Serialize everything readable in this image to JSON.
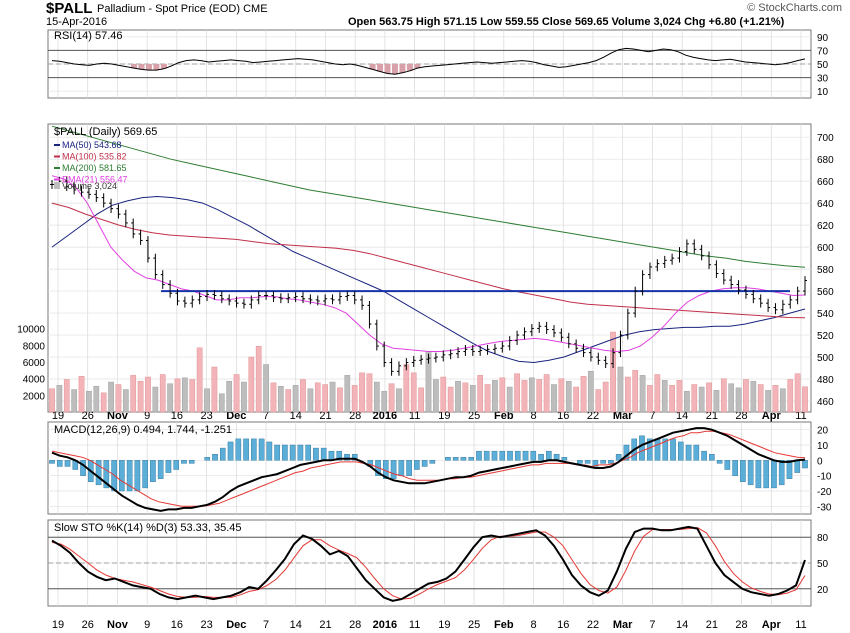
{
  "header": {
    "symbol": "$PALL",
    "description": "Palladium - Spot Price (EOD)",
    "exchange": "CME",
    "date": "15-Apr-2016",
    "quote": "Open 563.75  High 571.15  Low 559.55  Close 569.65  Volume 3,024  Chg +6.80 (+1.21%)",
    "credit": "© StockCharts.com"
  },
  "colors": {
    "ma50": "#1a237e",
    "ma100": "#c0304a",
    "ma200": "#2e7d32",
    "ema21": "#e040e0",
    "support": "#1533a8",
    "vol_up": "#f2b4b8",
    "vol_down": "#bdbdbd",
    "macd_hist": "#5aaed8"
  },
  "chart_data": [
    {
      "type": "line",
      "panel": "rsi",
      "label": "RSI(14) 57.46",
      "y_ticks": [
        90,
        70,
        50,
        30,
        10
      ],
      "ylim": [
        0,
        100
      ],
      "overbought": 70,
      "oversold": 30,
      "values": [
        55,
        54,
        52,
        50,
        49,
        48,
        50,
        51,
        50,
        48,
        46,
        44,
        42,
        41,
        41,
        43,
        47,
        52,
        55,
        56,
        55,
        53,
        54,
        55,
        56,
        55,
        54,
        52,
        53,
        54,
        55,
        56,
        57,
        58,
        57,
        56,
        54,
        52,
        50,
        49,
        50,
        48,
        45,
        42,
        39,
        36,
        35,
        37,
        40,
        44,
        46,
        47,
        48,
        49,
        50,
        51,
        52,
        53,
        52,
        51,
        52,
        53,
        54,
        55,
        54,
        52,
        49,
        47,
        45,
        46,
        48,
        50,
        52,
        55,
        60,
        66,
        71,
        73,
        72,
        70,
        68,
        70,
        72,
        71,
        68,
        63,
        60,
        58,
        56,
        55,
        56,
        57,
        55,
        53,
        52,
        51,
        50,
        49,
        50,
        52,
        55,
        57.46
      ]
    },
    {
      "type": "ohlc",
      "panel": "price",
      "label": "$PALL (Daily) 569.65",
      "x_labels": [
        "19",
        "26",
        "Nov",
        "9",
        "16",
        "23",
        "Dec",
        "7",
        "14",
        "21",
        "28",
        "2016",
        "11",
        "19",
        "25",
        "Feb",
        "8",
        "16",
        "22",
        "Mar",
        "7",
        "14",
        "21",
        "28",
        "Apr",
        "11"
      ],
      "y_ticks": [
        700,
        680,
        660,
        640,
        620,
        600,
        580,
        560,
        540,
        520,
        500,
        480,
        460
      ],
      "ylim": [
        450,
        712
      ],
      "support_level": 560,
      "close": [
        657,
        660,
        655,
        652,
        650,
        648,
        645,
        640,
        635,
        630,
        622,
        612,
        606,
        590,
        575,
        566,
        558,
        551,
        549,
        552,
        555,
        557,
        556,
        553,
        551,
        549,
        548,
        552,
        556,
        556,
        554,
        553,
        554,
        555,
        553,
        552,
        551,
        553,
        552,
        555,
        556,
        552,
        547,
        530,
        510,
        495,
        487,
        492,
        495,
        497,
        498,
        499,
        500,
        502,
        503,
        505,
        507,
        505,
        506,
        507,
        508,
        510,
        515,
        520,
        523,
        526,
        528,
        525,
        522,
        518,
        512,
        508,
        504,
        500,
        497,
        494,
        504,
        520,
        540,
        560,
        575,
        582,
        585,
        588,
        590,
        596,
        603,
        598,
        592,
        584,
        576,
        570,
        566,
        561,
        557,
        553,
        549,
        545,
        543,
        548,
        552,
        560,
        569.65
      ],
      "series": [
        {
          "name": "MA(50) 543.68",
          "values": [
            600,
            610,
            620,
            630,
            638,
            642,
            645,
            646,
            645,
            643,
            640,
            634,
            627,
            620,
            612,
            604,
            596,
            590,
            584,
            578,
            572,
            566,
            560,
            552,
            544,
            536,
            528,
            520,
            512,
            505,
            500,
            496,
            495,
            497,
            500,
            505,
            510,
            515,
            520,
            523,
            525,
            526,
            527,
            527,
            528,
            528,
            530,
            533,
            536,
            540,
            543.68
          ]
        },
        {
          "name": "MA(100) 535.82",
          "values": [
            640,
            636,
            630,
            625,
            620,
            616,
            613,
            611,
            610,
            609,
            608,
            607,
            605,
            603,
            602,
            601,
            600,
            599,
            597,
            594,
            590,
            586,
            582,
            578,
            574,
            570,
            566,
            562,
            559,
            556,
            553,
            550,
            548,
            547,
            546,
            545,
            544,
            543,
            542,
            541,
            540,
            539,
            538,
            537,
            536,
            535.82
          ]
        },
        {
          "name": "MA(200) 581.65",
          "values": [
            710,
            705,
            700,
            695,
            690,
            685,
            680,
            676,
            672,
            668,
            664,
            660,
            656,
            652,
            649,
            646,
            643,
            640,
            637,
            634,
            631,
            628,
            625,
            622,
            619,
            616,
            613,
            610,
            607,
            604,
            601,
            598,
            595,
            592,
            590,
            587,
            585,
            583,
            581.65
          ]
        },
        {
          "name": "EMA(21) 556.47",
          "values": [
            665,
            662,
            655,
            640,
            620,
            600,
            588,
            578,
            572,
            570,
            566,
            562,
            560,
            556,
            552,
            552,
            554,
            554,
            555,
            555,
            553,
            552,
            550,
            548,
            545,
            540,
            530,
            520,
            512,
            508,
            507,
            506,
            505,
            505,
            506,
            508,
            510,
            512,
            514,
            515,
            516,
            517,
            516,
            514,
            512,
            510,
            508,
            506,
            505,
            506,
            510,
            518,
            528,
            540,
            550,
            556,
            560,
            562,
            563,
            563,
            562,
            560,
            558,
            556,
            556.47
          ]
        }
      ]
    },
    {
      "type": "bar",
      "panel": "volume",
      "label": "Volume 3,024",
      "y_ticks": [
        10000,
        8000,
        6000,
        4000,
        2000
      ],
      "ylim": [
        0,
        12000
      ],
      "values": [
        2800,
        3200,
        3900,
        2700,
        4300,
        2500,
        3100,
        2300,
        3600,
        3300,
        2700,
        4400,
        3700,
        4200,
        3000,
        4500,
        3400,
        4000,
        4100,
        3900,
        7700,
        2800,
        5400,
        2200,
        3700,
        4500,
        3600,
        6600,
        7900,
        5700,
        3500,
        3100,
        2700,
        3200,
        3900,
        2800,
        3500,
        3300,
        3600,
        2900,
        4400,
        3200,
        4700,
        4600,
        3600,
        2500,
        3400,
        2800,
        5700,
        4700,
        2900,
        7300,
        3900,
        4200,
        3000,
        3700,
        3500,
        3200,
        4400,
        3300,
        3800,
        4100,
        3000,
        4600,
        3800,
        4100,
        3900,
        4500,
        3300,
        4000,
        3700,
        3000,
        4300,
        4900,
        2700,
        3600,
        9600,
        5400,
        4200,
        5000,
        4400,
        3200,
        4500,
        3800,
        3200,
        3800,
        2500,
        3300,
        3000,
        3500,
        2600,
        4000,
        3400,
        2900,
        3900,
        3700,
        3300,
        2600,
        3200,
        2800,
        3900,
        4600,
        3024
      ],
      "up": [
        1,
        0,
        1,
        0,
        1,
        0,
        0,
        1,
        0,
        1,
        0,
        1,
        1,
        1,
        0,
        1,
        0,
        1,
        0,
        1,
        1,
        0,
        1,
        0,
        0,
        1,
        0,
        1,
        1,
        0,
        1,
        0,
        1,
        0,
        1,
        0,
        1,
        1,
        0,
        1,
        0,
        1,
        1,
        1,
        0,
        0,
        1,
        0,
        1,
        1,
        1,
        0,
        0,
        1,
        1,
        0,
        1,
        0,
        1,
        1,
        0,
        1,
        0,
        1,
        1,
        0,
        1,
        1,
        0,
        1,
        0,
        1,
        1,
        0,
        1,
        1,
        1,
        0,
        1,
        1,
        0,
        1,
        1,
        0,
        1,
        1,
        0,
        1,
        0,
        1,
        0,
        1,
        0,
        0,
        1,
        0,
        1,
        0,
        1,
        0,
        1,
        1,
        1
      ]
    },
    {
      "type": "line",
      "panel": "macd",
      "label": "MACD(12,26,9) 0.494, 1.744, -1.251",
      "y_ticks": [
        20,
        10,
        0,
        -10,
        -20,
        -30
      ],
      "ylim": [
        -35,
        25
      ],
      "macd": [
        5,
        3,
        2,
        0,
        -3,
        -7,
        -11,
        -15,
        -19,
        -23,
        -26,
        -29,
        -31,
        -32,
        -33,
        -32,
        -32,
        -31,
        -31,
        -30,
        -29,
        -27,
        -24,
        -20,
        -17,
        -15,
        -13,
        -11,
        -10,
        -9,
        -7,
        -5,
        -3,
        -2,
        -1,
        0,
        0,
        1,
        1,
        1,
        -1,
        -4,
        -8,
        -11,
        -13,
        -14,
        -15,
        -15,
        -15,
        -14,
        -13,
        -12,
        -11,
        -11,
        -10,
        -8,
        -7,
        -6,
        -5,
        -4,
        -3,
        -2,
        -1,
        -1,
        0,
        0,
        -1,
        -2,
        -3,
        -4,
        -5,
        -5,
        -4,
        -1,
        3,
        7,
        10,
        12,
        14,
        16,
        18,
        19,
        20,
        21,
        21,
        20,
        18,
        16,
        13,
        10,
        7,
        4,
        2,
        0,
        -1,
        -1,
        0,
        0.494
      ],
      "signal": [
        6,
        5,
        4,
        3,
        2,
        0,
        -3,
        -6,
        -9,
        -13,
        -16,
        -19,
        -22,
        -25,
        -27,
        -28,
        -29,
        -30,
        -30,
        -30,
        -30,
        -29,
        -28,
        -26,
        -24,
        -22,
        -20,
        -18,
        -16,
        -14,
        -12,
        -10,
        -8,
        -7,
        -5,
        -4,
        -3,
        -2,
        -1,
        -1,
        -1,
        -2,
        -3,
        -5,
        -7,
        -9,
        -10,
        -12,
        -13,
        -13,
        -13,
        -13,
        -12,
        -12,
        -11,
        -11,
        -10,
        -9,
        -8,
        -7,
        -6,
        -5,
        -4,
        -3,
        -3,
        -2,
        -2,
        -2,
        -2,
        -3,
        -3,
        -4,
        -3,
        -3,
        -2,
        0,
        2,
        5,
        7,
        9,
        11,
        13,
        15,
        16,
        18,
        18,
        19,
        19,
        18,
        17,
        15,
        13,
        11,
        9,
        7,
        5,
        4,
        3,
        2,
        1.744
      ]
    },
    {
      "type": "line",
      "panel": "sto",
      "label": "Slow STO %K(14) %D(3) 53.33, 35.45",
      "y_ticks": [
        80,
        50,
        20
      ],
      "ylim": [
        0,
        100
      ],
      "k": [
        76,
        70,
        62,
        50,
        40,
        34,
        30,
        32,
        28,
        24,
        22,
        20,
        14,
        10,
        8,
        10,
        12,
        10,
        8,
        10,
        12,
        16,
        22,
        20,
        30,
        42,
        55,
        72,
        82,
        78,
        70,
        60,
        64,
        58,
        44,
        30,
        20,
        10,
        6,
        8,
        14,
        20,
        26,
        28,
        32,
        40,
        54,
        68,
        80,
        82,
        80,
        82,
        84,
        86,
        88,
        82,
        70,
        54,
        36,
        24,
        16,
        12,
        18,
        40,
        66,
        86,
        90,
        90,
        88,
        88,
        90,
        92,
        90,
        70,
        50,
        36,
        28,
        20,
        16,
        14,
        12,
        14,
        18,
        24,
        53.33
      ],
      "d": [
        74,
        72,
        66,
        58,
        50,
        42,
        36,
        32,
        30,
        28,
        25,
        22,
        18,
        14,
        11,
        10,
        10,
        11,
        10,
        10,
        10,
        13,
        17,
        19,
        24,
        31,
        42,
        56,
        70,
        77,
        77,
        70,
        65,
        61,
        56,
        45,
        32,
        20,
        12,
        8,
        9,
        14,
        20,
        25,
        29,
        33,
        42,
        54,
        67,
        77,
        81,
        81,
        82,
        84,
        86,
        86,
        80,
        70,
        54,
        38,
        25,
        18,
        15,
        22,
        41,
        64,
        81,
        89,
        89,
        89,
        89,
        90,
        91,
        85,
        70,
        52,
        38,
        28,
        21,
        17,
        14,
        13,
        15,
        19,
        35.45
      ]
    }
  ]
}
